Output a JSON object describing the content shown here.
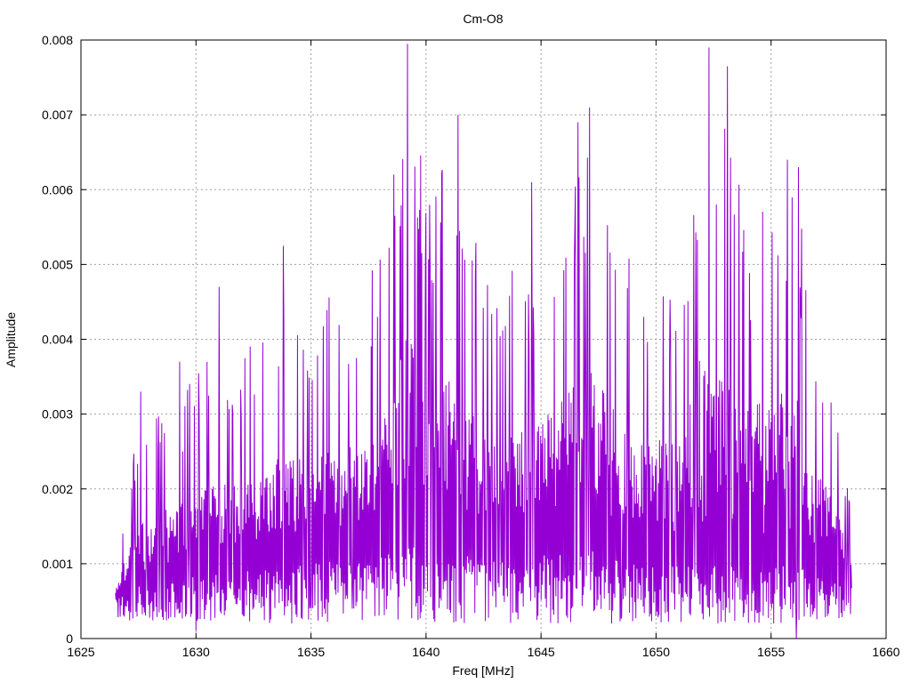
{
  "chart_data": {
    "type": "line",
    "title": "Cm-O8",
    "xlabel": "Freq [MHz]",
    "ylabel": "Amplitude",
    "xlim": [
      1625,
      1660
    ],
    "ylim": [
      0,
      0.008
    ],
    "x_ticks": [
      1625,
      1630,
      1635,
      1640,
      1645,
      1650,
      1655,
      1660
    ],
    "x_tick_labels": [
      "1625",
      "1630",
      "1635",
      "1640",
      "1645",
      "1650",
      "1655",
      "1660"
    ],
    "y_ticks": [
      0,
      0.001,
      0.002,
      0.003,
      0.004,
      0.005,
      0.006,
      0.007,
      0.008
    ],
    "y_tick_labels": [
      "0",
      "0.001",
      "0.002",
      "0.003",
      "0.004",
      "0.005",
      "0.006",
      "0.007",
      "0.008"
    ],
    "grid": true,
    "series_color": "#9400d3",
    "series": [
      {
        "x_start": 1626.5,
        "x_end": 1658.5,
        "envelope_x": [
          1626.5,
          1627.5,
          1628.5,
          1629.5,
          1630.5,
          1631.5,
          1632.5,
          1633.5,
          1634.5,
          1635.5,
          1636.5,
          1637.5,
          1638.5,
          1639.2,
          1640.0,
          1641.0,
          1642.0,
          1643.0,
          1644.0,
          1645.0,
          1646.0,
          1647.0,
          1648.0,
          1649.0,
          1650.0,
          1651.0,
          1652.2,
          1653.0,
          1654.0,
          1655.0,
          1656.0,
          1657.0,
          1658.0,
          1658.5
        ],
        "envelope_max": [
          0.0013,
          0.0028,
          0.0031,
          0.0033,
          0.0038,
          0.0038,
          0.004,
          0.0044,
          0.0045,
          0.0046,
          0.0046,
          0.005,
          0.0056,
          0.0079,
          0.0059,
          0.0065,
          0.0055,
          0.0047,
          0.005,
          0.0052,
          0.006,
          0.0066,
          0.0058,
          0.005,
          0.005,
          0.0047,
          0.0078,
          0.0072,
          0.0056,
          0.006,
          0.0062,
          0.0043,
          0.003,
          0.0016
        ],
        "envelope_base": [
          0.0006,
          0.0009,
          0.0009,
          0.0011,
          0.0012,
          0.0012,
          0.0013,
          0.0013,
          0.0014,
          0.0015,
          0.0015,
          0.0016,
          0.0017,
          0.0019,
          0.0018,
          0.0018,
          0.0016,
          0.0015,
          0.0016,
          0.0017,
          0.0017,
          0.0018,
          0.0016,
          0.0015,
          0.0014,
          0.0014,
          0.0015,
          0.0015,
          0.0014,
          0.0014,
          0.0014,
          0.0012,
          0.001,
          0.001
        ],
        "peaks": [
          {
            "x": 1639.2,
            "y": 0.00795
          },
          {
            "x": 1652.3,
            "y": 0.0079
          },
          {
            "x": 1653.1,
            "y": 0.00765
          },
          {
            "x": 1647.1,
            "y": 0.0071
          },
          {
            "x": 1641.4,
            "y": 0.007
          },
          {
            "x": 1638.6,
            "y": 0.0062
          },
          {
            "x": 1656.2,
            "y": 0.0063
          },
          {
            "x": 1655.7,
            "y": 0.0064
          },
          {
            "x": 1646.6,
            "y": 0.0069
          },
          {
            "x": 1633.8,
            "y": 0.00525
          },
          {
            "x": 1631.0,
            "y": 0.0047
          },
          {
            "x": 1629.3,
            "y": 0.0037
          },
          {
            "x": 1627.6,
            "y": 0.0033
          },
          {
            "x": 1644.6,
            "y": 0.0061
          }
        ],
        "dips": [
          {
            "x": 1630.0,
            "y": 0.0001
          },
          {
            "x": 1635.0,
            "y": 0.0004
          },
          {
            "x": 1636.8,
            "y": 0.0004
          },
          {
            "x": 1648.5,
            "y": 0.0003
          },
          {
            "x": 1650.0,
            "y": 0.0003
          },
          {
            "x": 1656.1,
            "y": 0.0
          }
        ]
      }
    ]
  }
}
